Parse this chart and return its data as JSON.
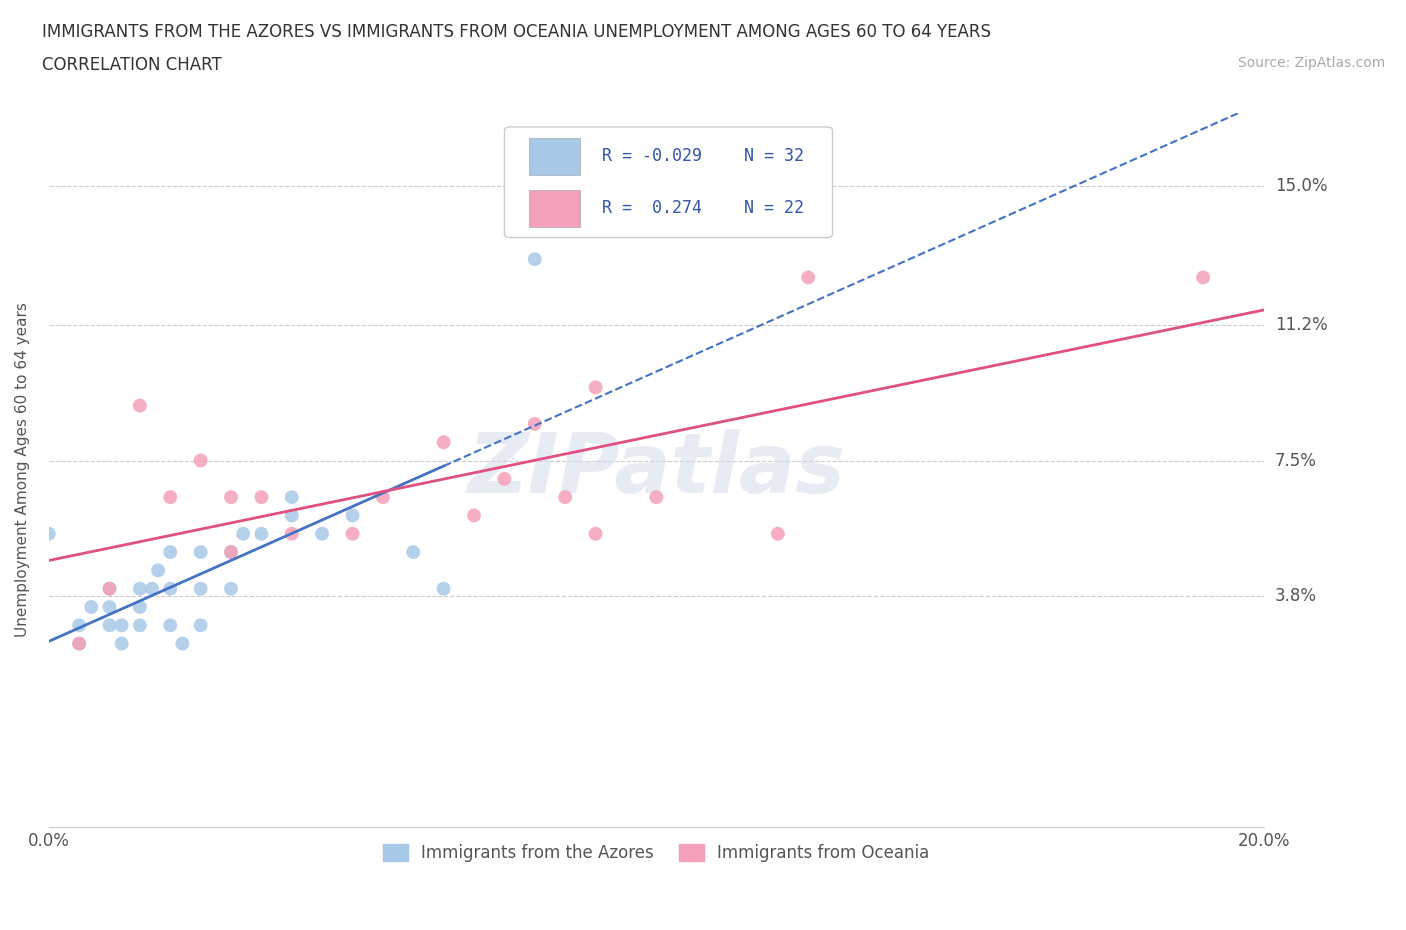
{
  "title_line1": "IMMIGRANTS FROM THE AZORES VS IMMIGRANTS FROM OCEANIA UNEMPLOYMENT AMONG AGES 60 TO 64 YEARS",
  "title_line2": "CORRELATION CHART",
  "source_text": "Source: ZipAtlas.com",
  "watermark": "ZIPatlas",
  "ylabel": "Unemployment Among Ages 60 to 64 years",
  "xlim": [
    0.0,
    0.2
  ],
  "ylim": [
    -0.025,
    0.17
  ],
  "yticks": [
    0.038,
    0.075,
    0.112,
    0.15
  ],
  "ytick_labels": [
    "3.8%",
    "7.5%",
    "11.2%",
    "15.0%"
  ],
  "xticks": [
    0.0,
    0.05,
    0.1,
    0.15,
    0.2
  ],
  "xtick_labels": [
    "0.0%",
    "",
    "",
    "",
    "20.0%"
  ],
  "color_azores": "#a8c8e8",
  "color_oceania": "#f4a0b8",
  "line_color_azores": "#4472C4",
  "line_color_oceania": "#e05080",
  "R_azores": -0.029,
  "N_azores": 32,
  "R_oceania": 0.274,
  "N_oceania": 22,
  "azores_x": [
    0.0,
    0.005,
    0.005,
    0.007,
    0.01,
    0.01,
    0.01,
    0.012,
    0.012,
    0.015,
    0.015,
    0.015,
    0.017,
    0.018,
    0.02,
    0.02,
    0.02,
    0.022,
    0.025,
    0.025,
    0.025,
    0.03,
    0.03,
    0.032,
    0.035,
    0.04,
    0.04,
    0.045,
    0.05,
    0.06,
    0.065,
    0.08
  ],
  "azores_y": [
    0.055,
    0.025,
    0.03,
    0.035,
    0.03,
    0.035,
    0.04,
    0.025,
    0.03,
    0.03,
    0.035,
    0.04,
    0.04,
    0.045,
    0.03,
    0.04,
    0.05,
    0.025,
    0.03,
    0.04,
    0.05,
    0.04,
    0.05,
    0.055,
    0.055,
    0.06,
    0.065,
    0.055,
    0.06,
    0.05,
    0.04,
    0.13
  ],
  "oceania_x": [
    0.005,
    0.01,
    0.015,
    0.02,
    0.025,
    0.03,
    0.03,
    0.035,
    0.04,
    0.05,
    0.055,
    0.065,
    0.07,
    0.075,
    0.08,
    0.085,
    0.09,
    0.09,
    0.1,
    0.12,
    0.125,
    0.19
  ],
  "oceania_y": [
    0.025,
    0.04,
    0.09,
    0.065,
    0.075,
    0.05,
    0.065,
    0.065,
    0.055,
    0.055,
    0.065,
    0.08,
    0.06,
    0.07,
    0.085,
    0.065,
    0.095,
    0.055,
    0.065,
    0.055,
    0.125,
    0.125
  ],
  "legend_R_azores": "R = -0.029",
  "legend_N_azores": "N = 32",
  "legend_R_oceania": "R =  0.274",
  "legend_N_oceania": "N = 22"
}
